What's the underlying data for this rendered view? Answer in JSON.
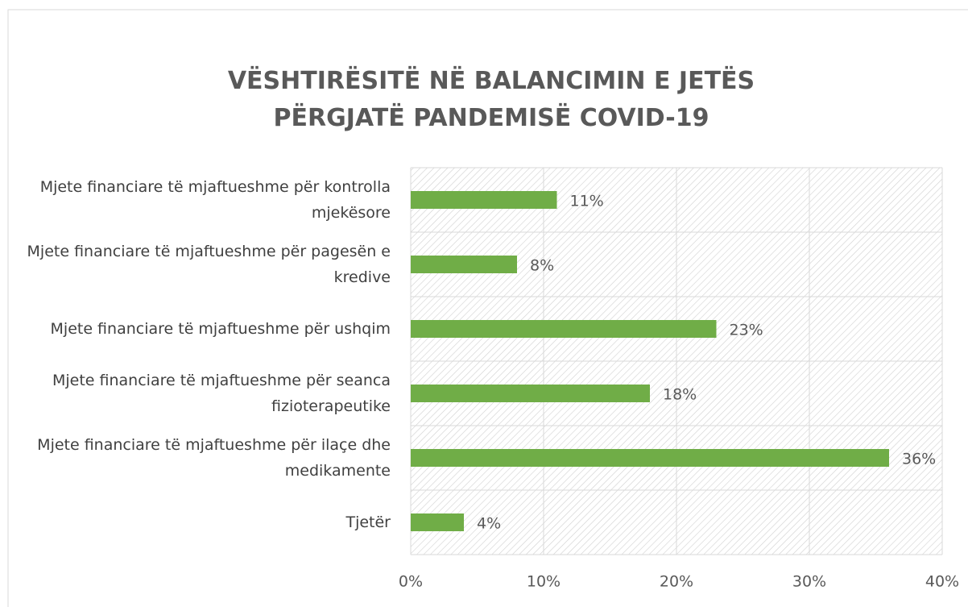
{
  "chart_data": {
    "type": "bar",
    "orientation": "horizontal",
    "title": "VËSHTIRËSITË NË BALANCIMIN E JETËS PËRGJATË PANDEMISË COVID-19",
    "categories": [
      "Mjete financiare të mjaftueshme për kontrolla mjekësore",
      "Mjete financiare të mjaftueshme për pagesën e kredive",
      "Mjete financiare të mjaftueshme për ushqim",
      "Mjete financiare të mjaftueshme për seanca fizioterapeutike",
      "Mjete financiare të mjaftueshme për ilaçe dhe medikamente",
      "Tjetër"
    ],
    "values": [
      11,
      8,
      23,
      18,
      36,
      4
    ],
    "value_labels": [
      "11%",
      "8%",
      "23%",
      "18%",
      "36%",
      "4%"
    ],
    "color": "#70ad47",
    "xlim": [
      0,
      40
    ],
    "xticks": [
      {
        "value": 0,
        "label": "0%"
      },
      {
        "value": 10,
        "label": "10%"
      },
      {
        "value": 20,
        "label": "20%"
      },
      {
        "value": 30,
        "label": "30%"
      },
      {
        "value": 40,
        "label": "40%"
      }
    ],
    "grid": true
  }
}
